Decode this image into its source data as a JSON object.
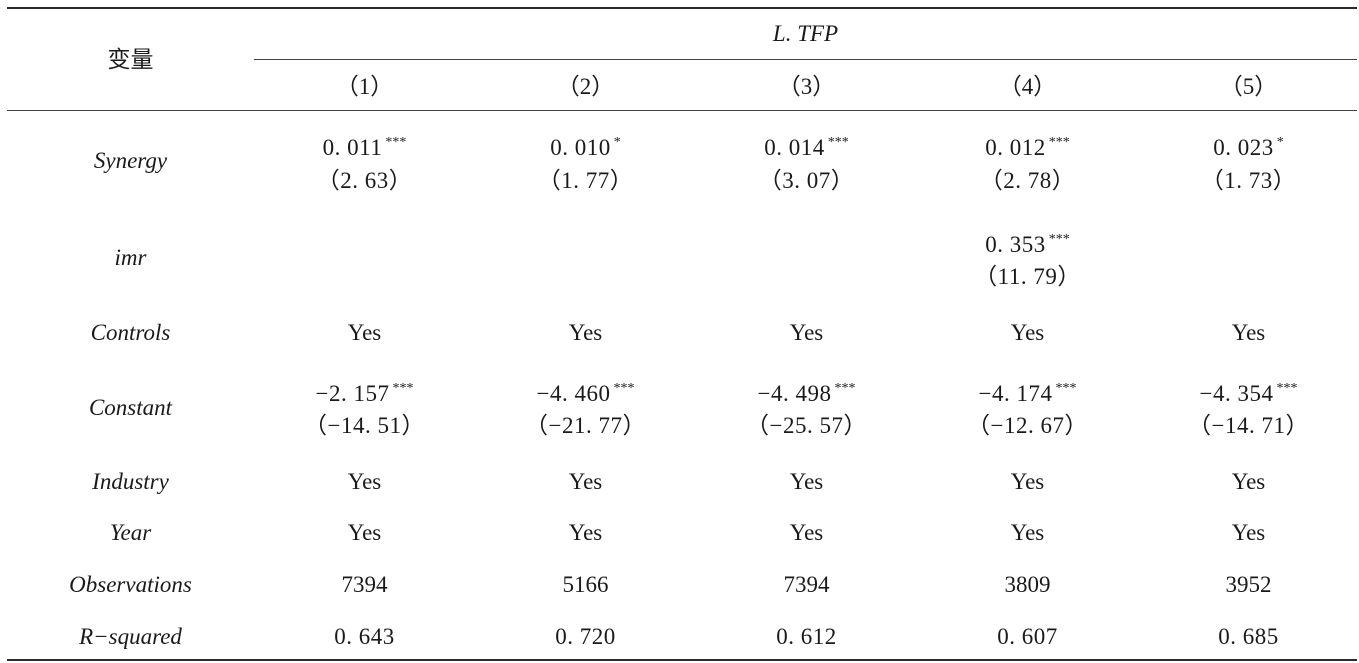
{
  "header": {
    "variable_label": "变量",
    "group_label": "L. TFP",
    "columns": [
      "（1）",
      "（2）",
      "（3）",
      "（4）",
      "（5）"
    ]
  },
  "rows": {
    "synergy": {
      "label": "Synergy",
      "coef": [
        "0. 011",
        "0. 010",
        "0. 014",
        "0. 012",
        "0. 023"
      ],
      "stars": [
        "***",
        "*",
        "***",
        "***",
        "*"
      ],
      "t": [
        "（2. 63）",
        "（1. 77）",
        "（3. 07）",
        "（2. 78）",
        "（1. 73）"
      ]
    },
    "imr": {
      "label": "imr",
      "coef4": "0. 353",
      "stars4": "***",
      "t4": "（11. 79）"
    },
    "controls": {
      "label": "Controls",
      "values": [
        "Yes",
        "Yes",
        "Yes",
        "Yes",
        "Yes"
      ]
    },
    "constant": {
      "label": "Constant",
      "coef": [
        "−2. 157",
        "−4. 460",
        "−4. 498",
        "−4. 174",
        "−4. 354"
      ],
      "stars": [
        "***",
        "***",
        "***",
        "***",
        "***"
      ],
      "t": [
        "（−14. 51）",
        "（−21. 77）",
        "（−25. 57）",
        "（−12. 67）",
        "（−14. 71）"
      ]
    },
    "industry": {
      "label": "Industry",
      "values": [
        "Yes",
        "Yes",
        "Yes",
        "Yes",
        "Yes"
      ]
    },
    "year": {
      "label": "Year",
      "values": [
        "Yes",
        "Yes",
        "Yes",
        "Yes",
        "Yes"
      ]
    },
    "observations": {
      "label": "Observations",
      "values": [
        "7394",
        "5166",
        "7394",
        "3809",
        "3952"
      ]
    },
    "rsquared": {
      "label": "R−squared",
      "values": [
        "0. 643",
        "0. 720",
        "0. 612",
        "0. 607",
        "0. 685"
      ]
    }
  }
}
